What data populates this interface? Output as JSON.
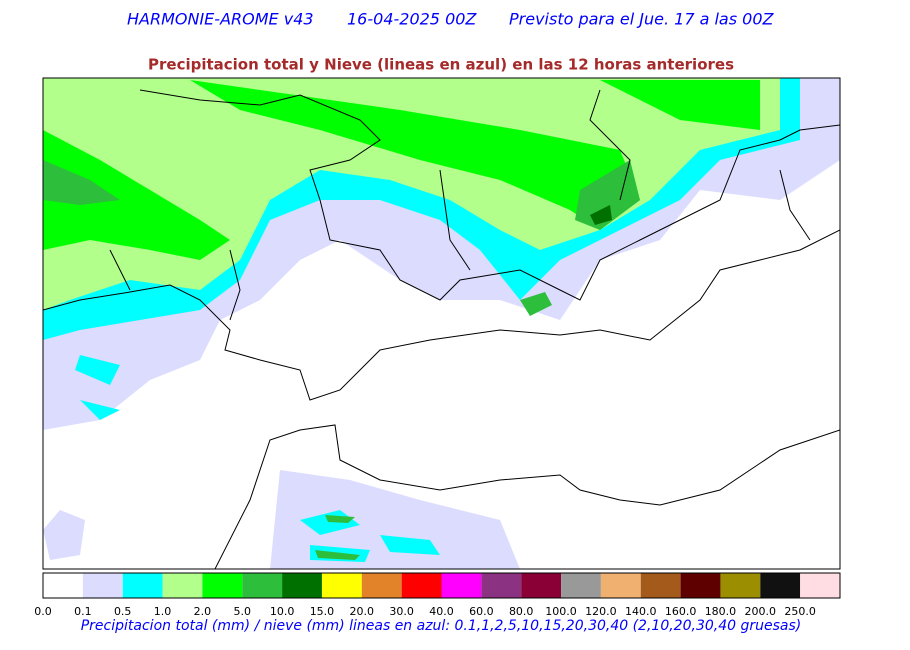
{
  "header": {
    "model": "HARMONIE-AROME v43",
    "run": "16-04-2025 00Z",
    "forecast": "Previsto para el Jue. 17 a las 00Z"
  },
  "subtitle": "Precipitacion total y Nieve (lineas en azul) en las 12 horas anteriores",
  "colorbar": {
    "items": [
      {
        "label": "0.0",
        "color": "#ffffff"
      },
      {
        "label": "0.1",
        "color": "#dcdcff"
      },
      {
        "label": "0.5",
        "color": "#00ffff"
      },
      {
        "label": "1.0",
        "color": "#b2ff8c"
      },
      {
        "label": "2.0",
        "color": "#00ff00"
      },
      {
        "label": "5.0",
        "color": "#2dbe3c"
      },
      {
        "label": "10.0",
        "color": "#007000"
      },
      {
        "label": "15.0",
        "color": "#ffff00"
      },
      {
        "label": "20.0",
        "color": "#e2832a"
      },
      {
        "label": "30.0",
        "color": "#ff0000"
      },
      {
        "label": "40.0",
        "color": "#ff00ff"
      },
      {
        "label": "60.0",
        "color": "#8b3282"
      },
      {
        "label": "80.0",
        "color": "#8a0036"
      },
      {
        "label": "100.0",
        "color": "#999999"
      },
      {
        "label": "120.0",
        "color": "#f0b070"
      },
      {
        "label": "140.0",
        "color": "#a45a1a"
      },
      {
        "label": "160.0",
        "color": "#5e0000"
      },
      {
        "label": "180.0",
        "color": "#9b8e00"
      },
      {
        "label": "200.0",
        "color": "#111111"
      },
      {
        "label": "250.0",
        "color": "#ffdde2"
      }
    ]
  },
  "caption": "Precipitacion total (mm) / nieve (mm) lineas en azul: 0.1,1,2,5,10,15,20,30,40  (2,10,20,30,40 gruesas)"
}
